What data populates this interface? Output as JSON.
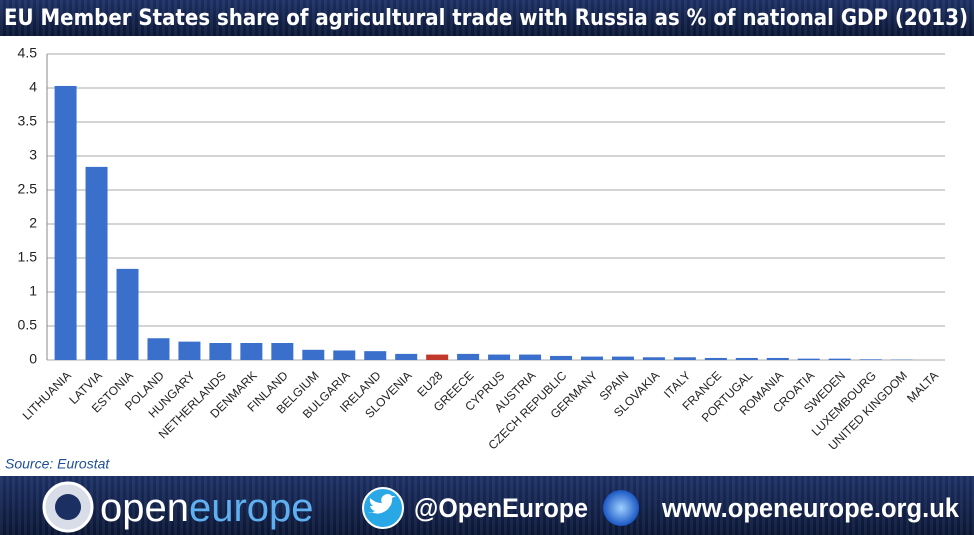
{
  "chart_data": {
    "type": "bar",
    "title": "EU Member States share of agricultural trade with Russia as % of national GDP (2013)",
    "categories": [
      "LITHUANIA",
      "LATVIA",
      "ESTONIA",
      "POLAND",
      "HUNGARY",
      "NETHERLANDS",
      "DENMARK",
      "FINLAND",
      "BELGIUM",
      "BULGARIA",
      "IRELAND",
      "SLOVENIA",
      "EU28",
      "GREECE",
      "CYPRUS",
      "AUSTRIA",
      "CZECH REPUBLIC",
      "GERMANY",
      "SPAIN",
      "SLOVAKIA",
      "ITALY",
      "FRANCE",
      "PORTUGAL",
      "ROMANIA",
      "CROATIA",
      "SWEDEN",
      "LUXEMBOURG",
      "UNITED KINGDOM",
      "MALTA"
    ],
    "values": [
      4.03,
      2.84,
      1.34,
      0.32,
      0.27,
      0.25,
      0.25,
      0.25,
      0.15,
      0.14,
      0.13,
      0.09,
      0.08,
      0.09,
      0.08,
      0.08,
      0.06,
      0.05,
      0.05,
      0.04,
      0.04,
      0.03,
      0.03,
      0.03,
      0.02,
      0.02,
      0.01,
      0.005,
      0
    ],
    "colors": [
      "#3a6fcc",
      "#3a6fcc",
      "#3a6fcc",
      "#3a6fcc",
      "#3a6fcc",
      "#3a6fcc",
      "#3a6fcc",
      "#3a6fcc",
      "#3a6fcc",
      "#3a6fcc",
      "#3a6fcc",
      "#3a6fcc",
      "#c0392b",
      "#3a6fcc",
      "#3a6fcc",
      "#3a6fcc",
      "#3a6fcc",
      "#3a6fcc",
      "#3a6fcc",
      "#3a6fcc",
      "#3a6fcc",
      "#3a6fcc",
      "#3a6fcc",
      "#3a6fcc",
      "#3a6fcc",
      "#3a6fcc",
      "#3a6fcc",
      "#3a6fcc",
      "#3a6fcc"
    ],
    "ylim": [
      0,
      4.5
    ],
    "yticks": [
      0,
      0.5,
      1,
      1.5,
      2,
      2.5,
      3,
      3.5,
      4,
      4.5
    ],
    "grid": true,
    "source": "Source: Eurostat"
  },
  "footer": {
    "logo_parts": [
      "open",
      "europe"
    ],
    "twitter": "@OpenEurope",
    "website": "www.openeurope.org.uk"
  }
}
